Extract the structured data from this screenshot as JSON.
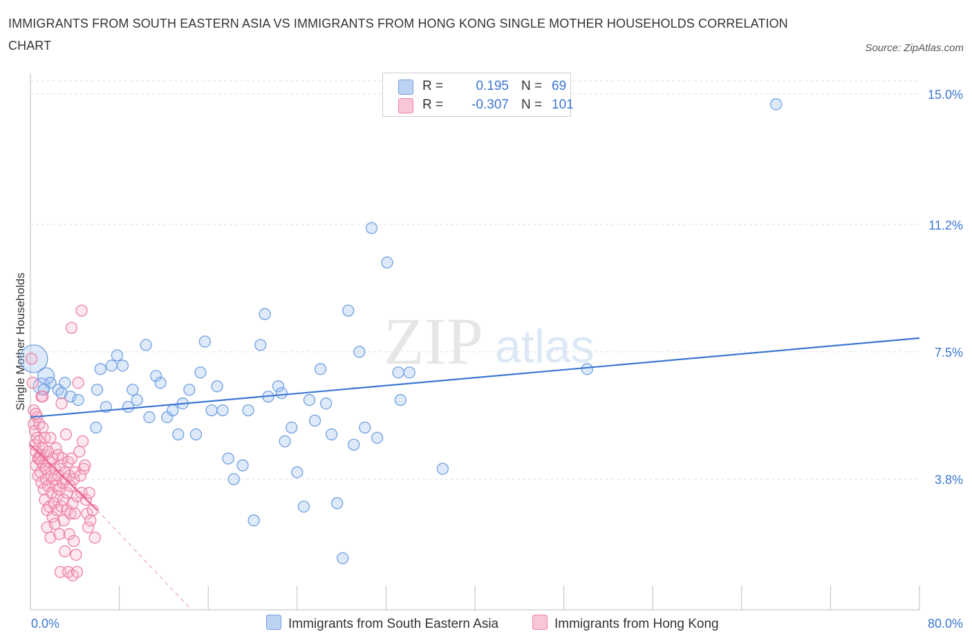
{
  "title": "IMMIGRANTS FROM SOUTH EASTERN ASIA VS IMMIGRANTS FROM HONG KONG SINGLE MOTHER HOUSEHOLDS CORRELATION CHART",
  "source": "Source: ZipAtlas.com",
  "watermark": {
    "zip": "ZIP",
    "atlas": "atlas"
  },
  "legend": {
    "series1": {
      "r_label": "R =",
      "r_value": "0.195",
      "n_label": "N =",
      "n_value": "69"
    },
    "series2": {
      "r_label": "R =",
      "r_value": "-0.307",
      "n_label": "N =",
      "n_value": "101"
    }
  },
  "chart_data": {
    "type": "scatter",
    "ylabel": "Single Mother Households",
    "xlim": [
      0,
      80
    ],
    "ylim": [
      0,
      15.6
    ],
    "x_tick_labels": {
      "min": "0.0%",
      "max": "80.0%"
    },
    "y_ticks": [
      {
        "value": 3.8,
        "label": "3.8%"
      },
      {
        "value": 7.5,
        "label": "7.5%"
      },
      {
        "value": 11.2,
        "label": "11.2%"
      },
      {
        "value": 15.0,
        "label": "15.0%"
      }
    ],
    "colors": {
      "blue": "#6f9fe0",
      "blue_fill": "rgba(160,196,240,0.35)",
      "blue_line": "#3b76d2",
      "pink": "#ee7ea3",
      "pink_fill": "rgba(246,180,204,0.30)",
      "pink_line": "#e8628f",
      "text_blue": "#3b76d2"
    },
    "series": [
      {
        "name": "Immigrants from South Eastern Asia",
        "trend": {
          "x0": 0,
          "y0": 5.6,
          "x1": 80,
          "y1": 7.9
        },
        "points": [
          [
            0.3,
            7.3
          ],
          [
            1.0,
            6.5
          ],
          [
            1.4,
            6.8
          ],
          [
            1.8,
            6.6
          ],
          [
            2.5,
            6.4
          ],
          [
            2.8,
            6.3
          ],
          [
            3.1,
            6.6
          ],
          [
            3.6,
            6.2
          ],
          [
            4.3,
            6.1
          ],
          [
            5.9,
            5.3
          ],
          [
            6.0,
            6.4
          ],
          [
            6.3,
            7.0
          ],
          [
            6.8,
            5.9
          ],
          [
            7.3,
            7.1
          ],
          [
            7.8,
            7.4
          ],
          [
            8.3,
            7.1
          ],
          [
            8.8,
            5.9
          ],
          [
            9.2,
            6.4
          ],
          [
            9.6,
            6.1
          ],
          [
            10.4,
            7.7
          ],
          [
            10.7,
            5.6
          ],
          [
            11.3,
            6.8
          ],
          [
            11.7,
            6.6
          ],
          [
            12.3,
            5.6
          ],
          [
            12.8,
            5.8
          ],
          [
            13.3,
            5.1
          ],
          [
            13.7,
            6.0
          ],
          [
            14.3,
            6.4
          ],
          [
            14.9,
            5.1
          ],
          [
            15.3,
            6.9
          ],
          [
            15.7,
            7.8
          ],
          [
            16.3,
            5.8
          ],
          [
            16.8,
            6.5
          ],
          [
            17.3,
            5.8
          ],
          [
            17.8,
            4.4
          ],
          [
            18.3,
            3.8
          ],
          [
            19.1,
            4.2
          ],
          [
            19.6,
            5.8
          ],
          [
            20.1,
            2.6
          ],
          [
            20.7,
            7.7
          ],
          [
            21.1,
            8.6
          ],
          [
            21.4,
            6.2
          ],
          [
            22.3,
            6.5
          ],
          [
            22.6,
            6.3
          ],
          [
            22.9,
            4.9
          ],
          [
            23.5,
            5.3
          ],
          [
            24.0,
            4.0
          ],
          [
            24.6,
            3.0
          ],
          [
            25.1,
            6.1
          ],
          [
            25.6,
            5.5
          ],
          [
            26.1,
            7.0
          ],
          [
            26.6,
            6.0
          ],
          [
            27.1,
            5.1
          ],
          [
            27.6,
            3.1
          ],
          [
            28.1,
            1.5
          ],
          [
            28.6,
            8.7
          ],
          [
            29.1,
            4.8
          ],
          [
            29.6,
            7.5
          ],
          [
            30.1,
            5.3
          ],
          [
            30.7,
            11.1
          ],
          [
            31.2,
            5.0
          ],
          [
            32.1,
            10.1
          ],
          [
            33.1,
            6.9
          ],
          [
            33.3,
            6.1
          ],
          [
            34.1,
            6.9
          ],
          [
            37.1,
            4.1
          ],
          [
            50.1,
            7.0
          ],
          [
            67.1,
            14.7
          ],
          [
            1.2,
            6.4
          ]
        ]
      },
      {
        "name": "Immigrants from Hong Kong",
        "trend": {
          "x0": 0,
          "y0": 4.8,
          "x1": 6.0,
          "y1": 2.9,
          "dash_x1": 14.5,
          "dash_y1": 0.0
        },
        "points": [
          [
            0.1,
            7.3
          ],
          [
            0.2,
            6.6
          ],
          [
            0.3,
            5.8
          ],
          [
            0.3,
            5.4
          ],
          [
            0.4,
            5.2
          ],
          [
            0.4,
            4.8
          ],
          [
            0.5,
            4.6
          ],
          [
            0.5,
            4.2
          ],
          [
            0.6,
            5.6
          ],
          [
            0.6,
            5.0
          ],
          [
            0.7,
            4.4
          ],
          [
            0.7,
            3.9
          ],
          [
            0.8,
            5.4
          ],
          [
            0.8,
            4.9
          ],
          [
            0.9,
            4.5
          ],
          [
            0.9,
            4.0
          ],
          [
            1.0,
            6.2
          ],
          [
            1.0,
            4.3
          ],
          [
            1.0,
            3.7
          ],
          [
            1.1,
            5.3
          ],
          [
            1.1,
            4.7
          ],
          [
            1.2,
            4.2
          ],
          [
            1.2,
            3.5
          ],
          [
            1.3,
            5.0
          ],
          [
            1.3,
            4.5
          ],
          [
            1.3,
            3.2
          ],
          [
            1.4,
            4.1
          ],
          [
            1.4,
            3.8
          ],
          [
            1.5,
            2.9
          ],
          [
            1.5,
            2.4
          ],
          [
            1.6,
            4.6
          ],
          [
            1.6,
            3.6
          ],
          [
            1.7,
            4.3
          ],
          [
            1.7,
            3.0
          ],
          [
            1.8,
            2.1
          ],
          [
            1.8,
            5.0
          ],
          [
            1.9,
            3.9
          ],
          [
            1.9,
            3.4
          ],
          [
            2.0,
            4.4
          ],
          [
            2.0,
            2.7
          ],
          [
            2.1,
            3.8
          ],
          [
            2.1,
            3.1
          ],
          [
            2.2,
            4.1
          ],
          [
            2.2,
            2.5
          ],
          [
            2.3,
            3.6
          ],
          [
            2.3,
            4.7
          ],
          [
            2.4,
            3.3
          ],
          [
            2.4,
            2.9
          ],
          [
            2.5,
            4.5
          ],
          [
            2.5,
            3.9
          ],
          [
            2.6,
            3.5
          ],
          [
            2.6,
            2.2
          ],
          [
            2.7,
            4.2
          ],
          [
            2.7,
            1.1
          ],
          [
            2.8,
            3.0
          ],
          [
            2.8,
            6.0
          ],
          [
            2.9,
            3.7
          ],
          [
            2.9,
            4.4
          ],
          [
            3.0,
            3.2
          ],
          [
            3.0,
            2.6
          ],
          [
            3.1,
            4.0
          ],
          [
            3.1,
            1.7
          ],
          [
            3.2,
            3.8
          ],
          [
            3.2,
            5.1
          ],
          [
            3.3,
            3.4
          ],
          [
            3.3,
            2.9
          ],
          [
            3.4,
            4.3
          ],
          [
            3.4,
            1.1
          ],
          [
            3.5,
            3.9
          ],
          [
            3.5,
            2.2
          ],
          [
            3.6,
            3.6
          ],
          [
            3.6,
            2.8
          ],
          [
            3.7,
            4.4
          ],
          [
            3.7,
            8.2
          ],
          [
            3.8,
            3.1
          ],
          [
            3.8,
            1.0
          ],
          [
            3.9,
            3.8
          ],
          [
            3.9,
            2.0
          ],
          [
            4.0,
            4.0
          ],
          [
            4.0,
            2.8
          ],
          [
            4.1,
            1.6
          ],
          [
            4.2,
            3.3
          ],
          [
            4.2,
            1.1
          ],
          [
            4.3,
            6.6
          ],
          [
            4.4,
            4.6
          ],
          [
            4.5,
            3.9
          ],
          [
            4.6,
            3.4
          ],
          [
            4.7,
            4.9
          ],
          [
            4.8,
            4.1
          ],
          [
            4.9,
            4.2
          ],
          [
            5.0,
            3.2
          ],
          [
            5.1,
            2.8
          ],
          [
            5.2,
            2.4
          ],
          [
            5.3,
            3.4
          ],
          [
            5.4,
            2.6
          ],
          [
            5.6,
            2.9
          ],
          [
            5.8,
            2.1
          ],
          [
            4.6,
            8.7
          ],
          [
            0.5,
            5.7
          ],
          [
            0.8,
            4.4
          ],
          [
            1.1,
            6.2
          ]
        ]
      }
    ]
  }
}
